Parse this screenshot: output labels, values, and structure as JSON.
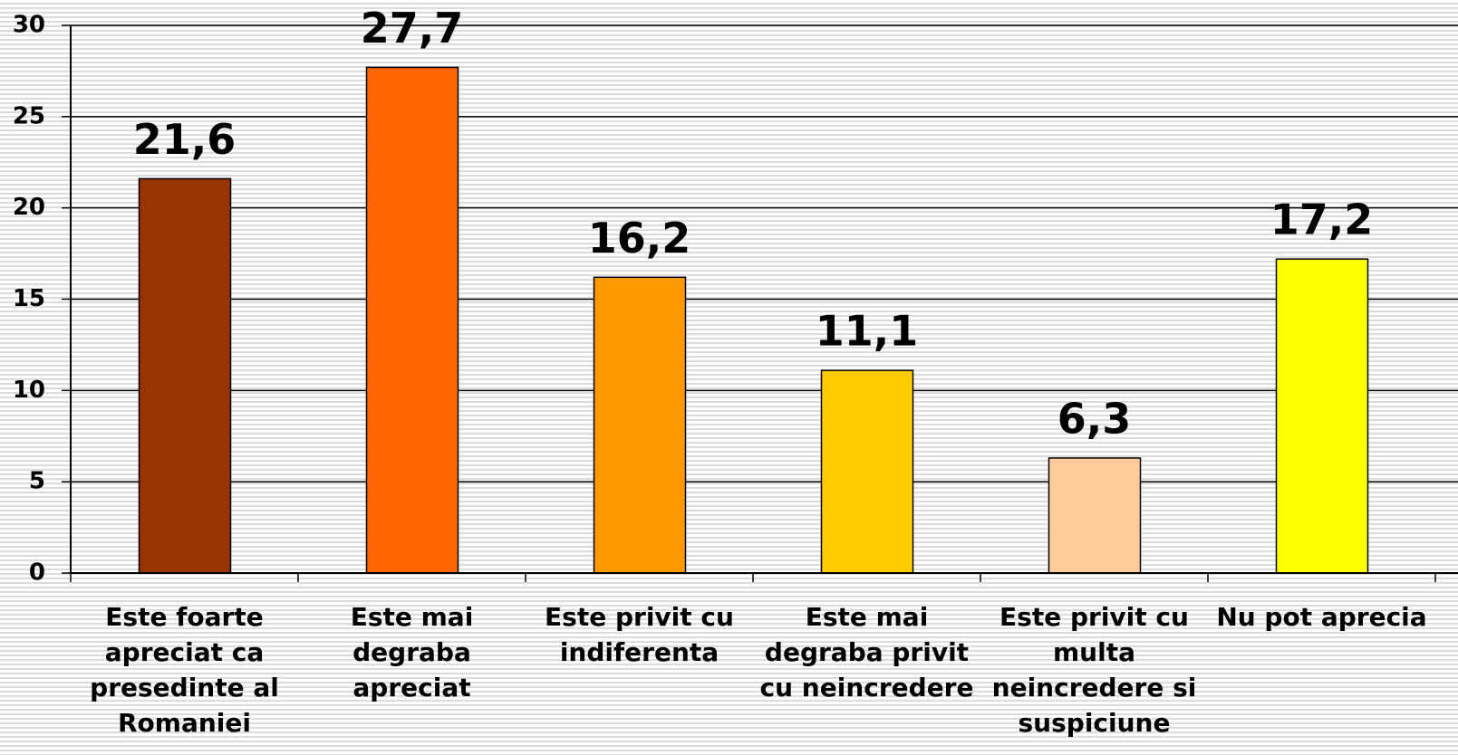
{
  "chart_data": {
    "type": "bar",
    "categories": [
      "Este foarte apreciat ca presedinte al Romaniei",
      "Este mai degraba apreciat",
      "Este privit cu indiferenta",
      "Este mai degraba privit cu neincredere",
      "Este privit cu multa neincredere si suspiciune",
      "Nu pot aprecia"
    ],
    "values": [
      21.6,
      27.7,
      16.2,
      11.1,
      6.3,
      17.2
    ],
    "value_labels": [
      "21,6",
      "27,7",
      "16,2",
      "11,1",
      "6,3",
      "17,2"
    ],
    "colors": [
      "#993300",
      "#ff6600",
      "#ff9900",
      "#ffcc00",
      "#ffcc99",
      "#ffff00"
    ],
    "ylim": [
      0,
      30
    ],
    "yticks": [
      0,
      5,
      10,
      15,
      20,
      25,
      30
    ],
    "grid": true
  }
}
